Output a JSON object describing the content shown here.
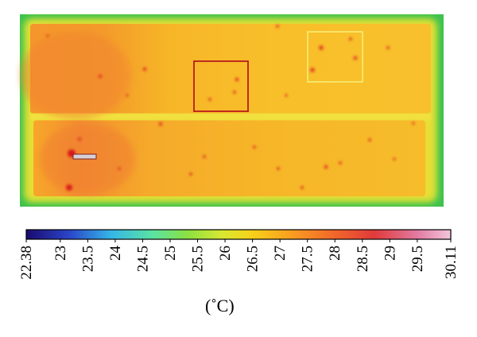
{
  "figure": {
    "marker_label": "",
    "colorbar": {
      "min": 22.38,
      "max": 30.11,
      "ticks": [
        "22.38",
        "23",
        "23.5",
        "24",
        "24.5",
        "25",
        "25.5",
        "26",
        "26.5",
        "27",
        "27.5",
        "28",
        "28.5",
        "29",
        "29.5",
        "30.11"
      ],
      "unit": "(˚C)",
      "colormap": [
        "#1a0a6e",
        "#2a44c8",
        "#35b6e8",
        "#5be4a0",
        "#8be040",
        "#d8e832",
        "#f7d21a",
        "#f8a020",
        "#f26a28",
        "#e03a3a",
        "#e27aa0",
        "#f2c6dc"
      ]
    },
    "colors": {
      "panel_edge": "#2ec24a",
      "box_dark": "#b81c1c",
      "box_light": "#f6f07a",
      "hot_spot": "#e01818"
    }
  }
}
